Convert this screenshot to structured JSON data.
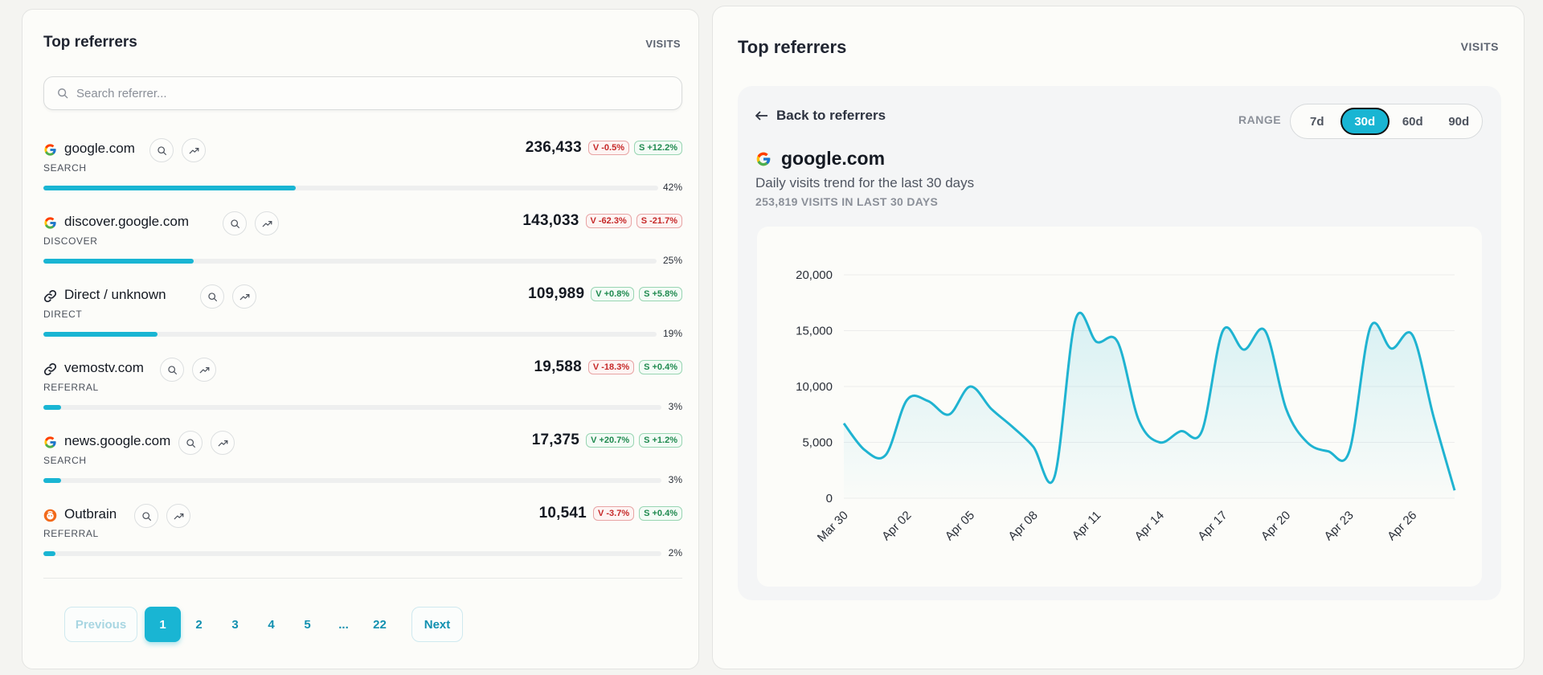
{
  "left": {
    "title": "Top referrers",
    "visits_label": "VISITS",
    "search_placeholder": "Search referrer...",
    "rows": [
      {
        "name": "google.com",
        "category": "SEARCH",
        "count": "236,433",
        "v": "V -0.5%",
        "v_dir": "neg",
        "s": "S +12.2%",
        "s_dir": "pos",
        "pct": "42%",
        "share": 0.42,
        "logo": "google-logo"
      },
      {
        "name": "discover.google.com",
        "category": "DISCOVER",
        "count": "143,033",
        "v": "V -62.3%",
        "v_dir": "neg",
        "s": "S -21.7%",
        "s_dir": "neg",
        "pct": "25%",
        "share": 0.25,
        "logo": "google-logo"
      },
      {
        "name": "Direct / unknown",
        "category": "DIRECT",
        "count": "109,989",
        "v": "V +0.8%",
        "v_dir": "pos",
        "s": "S +5.8%",
        "s_dir": "pos",
        "pct": "19%",
        "share": 0.19,
        "logo": "link-icon"
      },
      {
        "name": "vemostv.com",
        "category": "REFERRAL",
        "count": "19,588",
        "v": "V -18.3%",
        "v_dir": "neg",
        "s": "S +0.4%",
        "s_dir": "pos",
        "pct": "3%",
        "share": 0.03,
        "logo": "link-icon"
      },
      {
        "name": "news.google.com",
        "category": "SEARCH",
        "count": "17,375",
        "v": "V +20.7%",
        "v_dir": "pos",
        "s": "S +1.2%",
        "s_dir": "pos",
        "pct": "3%",
        "share": 0.03,
        "logo": "google-logo"
      },
      {
        "name": "Outbrain",
        "category": "REFERRAL",
        "count": "10,541",
        "v": "V -3.7%",
        "v_dir": "neg",
        "s": "S +0.4%",
        "s_dir": "pos",
        "pct": "2%",
        "share": 0.02,
        "logo": "outbrain-logo"
      }
    ],
    "pagination": {
      "prev": "Previous",
      "next": "Next",
      "pages": [
        "1",
        "2",
        "3",
        "4",
        "5",
        "...",
        "22"
      ],
      "current": "1"
    }
  },
  "right": {
    "title": "Top referrers",
    "visits_label": "VISITS",
    "back_label": "Back to referrers",
    "range_label": "RANGE",
    "range_options": [
      "7d",
      "30d",
      "60d",
      "90d"
    ],
    "range_selected": "30d",
    "domain": "google.com",
    "subtitle": "Daily visits trend for the last 30 days",
    "total": "253,819 VISITS IN LAST 30 DAYS"
  },
  "colors": {
    "accent": "#19b5d3",
    "negative": "#c62828",
    "positive": "#1f8a4f"
  },
  "chart_data": {
    "type": "area",
    "x": [
      "Mar 30",
      "Mar 31",
      "Apr 01",
      "Apr 02",
      "Apr 03",
      "Apr 04",
      "Apr 05",
      "Apr 06",
      "Apr 07",
      "Apr 08",
      "Apr 09",
      "Apr 10",
      "Apr 11",
      "Apr 12",
      "Apr 13",
      "Apr 14",
      "Apr 15",
      "Apr 16",
      "Apr 17",
      "Apr 18",
      "Apr 19",
      "Apr 20",
      "Apr 21",
      "Apr 22",
      "Apr 23",
      "Apr 24",
      "Apr 25",
      "Apr 26",
      "Apr 27",
      "Apr 28"
    ],
    "values": [
      6700,
      4300,
      3900,
      8800,
      8700,
      7500,
      10000,
      8000,
      6400,
      4600,
      1900,
      16000,
      14000,
      14000,
      7000,
      5000,
      6000,
      6000,
      15000,
      13300,
      15000,
      8000,
      5000,
      4200,
      4200,
      15300,
      13400,
      14600,
      7300,
      700
    ],
    "x_tick_labels": [
      "Mar 30",
      "Apr 02",
      "Apr 05",
      "Apr 08",
      "Apr 11",
      "Apr 14",
      "Apr 17",
      "Apr 20",
      "Apr 23",
      "Apr 26"
    ],
    "y_ticks": [
      "0",
      "5,000",
      "10,000",
      "15,000",
      "20,000"
    ],
    "ylim": [
      0,
      20000
    ],
    "grid": true,
    "series": [
      {
        "values_ref": "values"
      }
    ]
  }
}
